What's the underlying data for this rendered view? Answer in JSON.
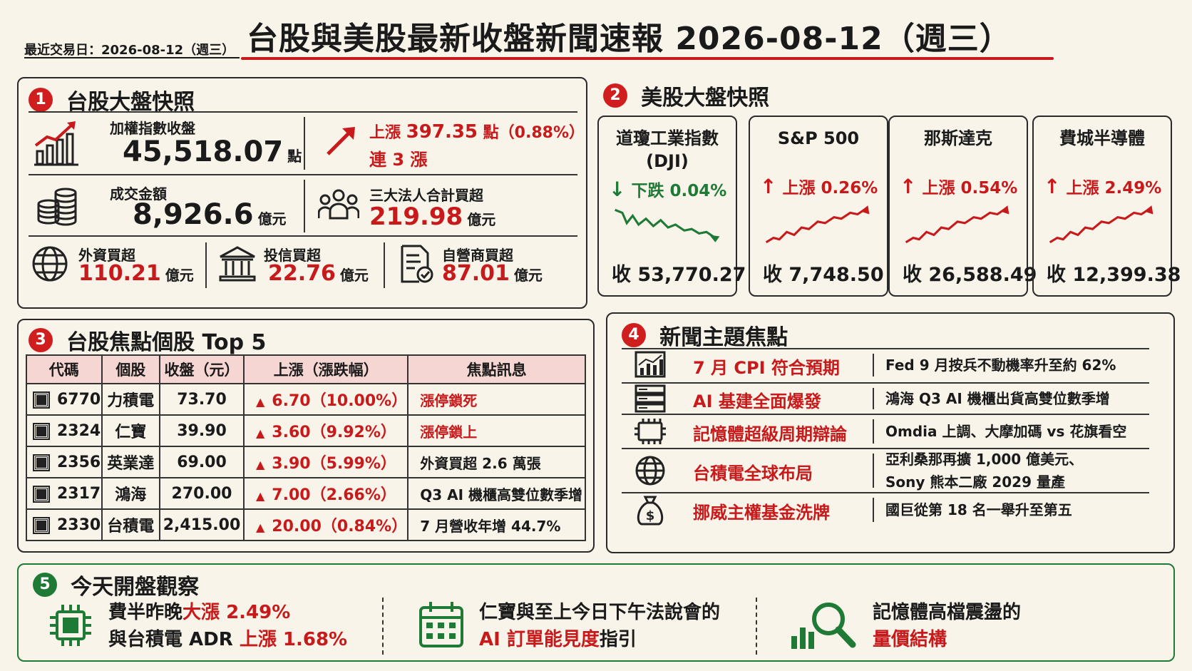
{
  "header": {
    "last_trade_date": "最近交易日：2026-08-12（週三）",
    "title": "台股與美股最新收盤新聞速報 2026-08-12（週三）"
  },
  "tw_snapshot": {
    "num": "1",
    "title": "台股大盤快照",
    "index_label": "加權指數收盤",
    "index_value": "45,518.07",
    "index_unit": "點",
    "change_prefix": "上漲 ",
    "change_value": "397.35",
    "change_suffix": " 點（0.88%）",
    "streak": "連 3 漲",
    "turnover_label": "成交金額",
    "turnover_value": "8,926.6",
    "turnover_unit": "億元",
    "inst_label": "三大法人合計買超",
    "inst_value": "219.98",
    "inst_unit": "億元",
    "foreign_label": "外資買超",
    "foreign_value": "110.21",
    "foreign_unit": "億元",
    "trust_label": "投信買超",
    "trust_value": "22.76",
    "trust_unit": "億元",
    "dealer_label": "自營商買超",
    "dealer_value": "87.01",
    "dealer_unit": "億元"
  },
  "us_snapshot": {
    "num": "2",
    "title": "美股大盤快照",
    "cards": [
      {
        "name": "道瓊工業指數\n(DJI)",
        "direction": "down",
        "arrow": "↓",
        "change": "下跌 0.04%",
        "close": "收 53,770.27"
      },
      {
        "name": "S&P 500",
        "direction": "up",
        "arrow": "↑",
        "change": "上漲 0.26%",
        "close": "收 7,748.50"
      },
      {
        "name": "那斯達克",
        "direction": "up",
        "arrow": "↑",
        "change": "上漲 0.54%",
        "close": "收 26,588.49"
      },
      {
        "name": "費城半導體",
        "direction": "up",
        "arrow": "↑",
        "change": "上漲 2.49%",
        "close": "收 12,399.38"
      }
    ]
  },
  "focus_stocks": {
    "num": "3",
    "title": "台股焦點個股 Top 5",
    "headers": [
      "代碼",
      "個股",
      "收盤（元）",
      "上漲（漲跌幅）",
      "焦點訊息"
    ],
    "rows": [
      {
        "code": "6770",
        "name": "力積電",
        "close": "73.70",
        "change": "6.70（10.00%）",
        "info": "漲停鎖死",
        "info_red": true
      },
      {
        "code": "2324",
        "name": "仁寶",
        "close": "39.90",
        "change": "3.60（9.92%）",
        "info": "漲停鎖上",
        "info_red": true
      },
      {
        "code": "2356",
        "name": "英業達",
        "close": "69.00",
        "change": "3.90（5.99%）",
        "info": "外資買超 2.6 萬張",
        "info_red": false
      },
      {
        "code": "2317",
        "name": "鴻海",
        "close": "270.00",
        "change": "7.00（2.66%）",
        "info": "Q3 AI 機櫃高雙位數季增",
        "info_red": false
      },
      {
        "code": "2330",
        "name": "台積電",
        "close": "2,415.00",
        "change": "20.00（0.84%）",
        "info": "7 月營收年增 44.7%",
        "info_red": false
      }
    ]
  },
  "news_topics": {
    "num": "4",
    "title": "新聞主題焦點",
    "items": [
      {
        "icon": "chart-icon",
        "topic": "7 月 CPI 符合預期",
        "info": "Fed 9 月按兵不動機率升至約 62%"
      },
      {
        "icon": "server-icon",
        "topic": "AI 基建全面爆發",
        "info": "鴻海 Q3 AI 機櫃出貨高雙位數季增"
      },
      {
        "icon": "memory-chip-icon",
        "topic": "記憶體超級周期辯論",
        "info": "Omdia 上調、大摩加碼 vs 花旗看空"
      },
      {
        "icon": "globe-icon",
        "topic": "台積電全球布局",
        "info": "亞利桑那再擴 1,000 億美元、\nSony 熊本二廠 2029 量產"
      },
      {
        "icon": "money-bag-icon",
        "topic": "挪威主權基金洗牌",
        "info": "國巨從第 18 名一舉升至第五"
      }
    ]
  },
  "watch": {
    "num": "5",
    "title": "今天開盤觀察",
    "item1_a": "費半昨晚",
    "item1_b": "大漲 2.49%",
    "item1_c": "與台積電 ADR ",
    "item1_d": "上漲 1.68%",
    "item2_a": "仁寶與至上今日下午法說會的",
    "item2_b": "AI 訂單能見度",
    "item2_c": "指引",
    "item3_a": "記憶體高檔震盪的",
    "item3_b": "量價結構"
  },
  "colors": {
    "red": "#c8191b",
    "green": "#1f7a35",
    "background": "#f8f4ea"
  }
}
